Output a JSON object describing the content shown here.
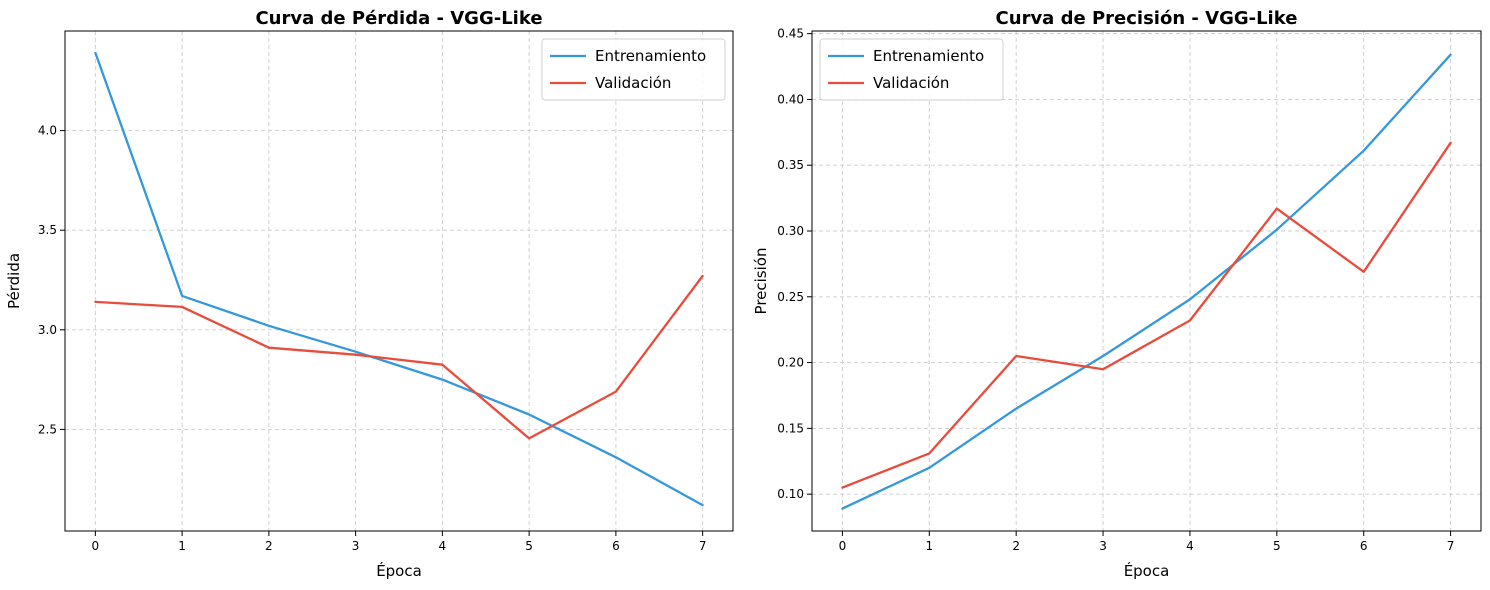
{
  "chart_data": [
    {
      "type": "line",
      "title": "Curva de Pérdida - VGG-Like",
      "xlabel": "Época",
      "ylabel": "Pérdida",
      "x": [
        0,
        1,
        2,
        3,
        4,
        5,
        6,
        7
      ],
      "xticks": [
        "0",
        "1",
        "2",
        "3",
        "4",
        "5",
        "6",
        "7"
      ],
      "xlim": [
        -0.35,
        7.35
      ],
      "ylim": [
        1.99,
        4.5
      ],
      "yticks": [
        2.5,
        3.0,
        3.5,
        4.0
      ],
      "ytick_labels": [
        "2.5",
        "3.0",
        "3.5",
        "4.0"
      ],
      "grid": true,
      "legend_position": "top-right",
      "series": [
        {
          "name": "Entrenamiento",
          "color": "#3498db",
          "values": [
            4.39,
            3.17,
            3.02,
            2.89,
            2.75,
            2.575,
            2.36,
            2.12
          ]
        },
        {
          "name": "Validación",
          "color": "#e74c3c",
          "values": [
            3.14,
            3.115,
            2.91,
            2.875,
            2.825,
            2.455,
            2.69,
            3.27
          ]
        }
      ]
    },
    {
      "type": "line",
      "title": "Curva de Precisión - VGG-Like",
      "xlabel": "Época",
      "ylabel": "Precisión",
      "x": [
        0,
        1,
        2,
        3,
        4,
        5,
        6,
        7
      ],
      "xticks": [
        "0",
        "1",
        "2",
        "3",
        "4",
        "5",
        "6",
        "7"
      ],
      "xlim": [
        -0.35,
        7.35
      ],
      "ylim": [
        0.072,
        0.452
      ],
      "yticks": [
        0.1,
        0.15,
        0.2,
        0.25,
        0.3,
        0.35,
        0.4,
        0.45
      ],
      "ytick_labels": [
        "0.10",
        "0.15",
        "0.20",
        "0.25",
        "0.30",
        "0.35",
        "0.40",
        "0.45"
      ],
      "grid": true,
      "legend_position": "top-left",
      "series": [
        {
          "name": "Entrenamiento",
          "color": "#3498db",
          "values": [
            0.089,
            0.12,
            0.165,
            0.205,
            0.248,
            0.301,
            0.361,
            0.434
          ]
        },
        {
          "name": "Validación",
          "color": "#e74c3c",
          "values": [
            0.105,
            0.131,
            0.205,
            0.195,
            0.232,
            0.317,
            0.269,
            0.367
          ]
        }
      ]
    }
  ]
}
